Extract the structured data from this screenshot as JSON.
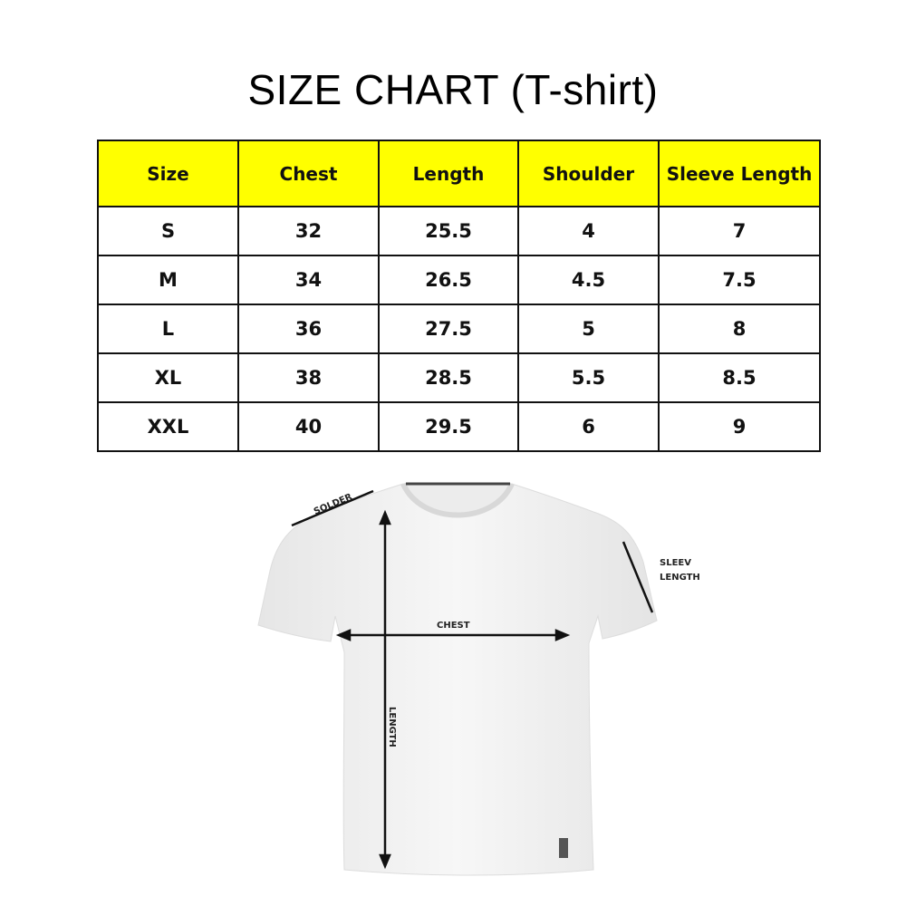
{
  "title": "SIZE CHART (T-shirt)",
  "table": {
    "headers": [
      "Size",
      "Chest",
      "Length",
      "Shoulder",
      "Sleeve Length"
    ],
    "rows": [
      [
        "S",
        "32",
        "25.5",
        "4",
        "7"
      ],
      [
        "M",
        "34",
        "26.5",
        "4.5",
        "7.5"
      ],
      [
        "L",
        "36",
        "27.5",
        "5",
        "8"
      ],
      [
        "XL",
        "38",
        "28.5",
        "5.5",
        "8.5"
      ],
      [
        "XXL",
        "40",
        "29.5",
        "6",
        "9"
      ]
    ]
  },
  "diagram": {
    "shoulder_label": "SOLDER",
    "sleeve_label_1": "SLEEV",
    "sleeve_label_2": "LENGTH",
    "chest_label": "CHEST",
    "length_label": "LENGTH"
  },
  "colors": {
    "header_bg": "#ffff00"
  }
}
